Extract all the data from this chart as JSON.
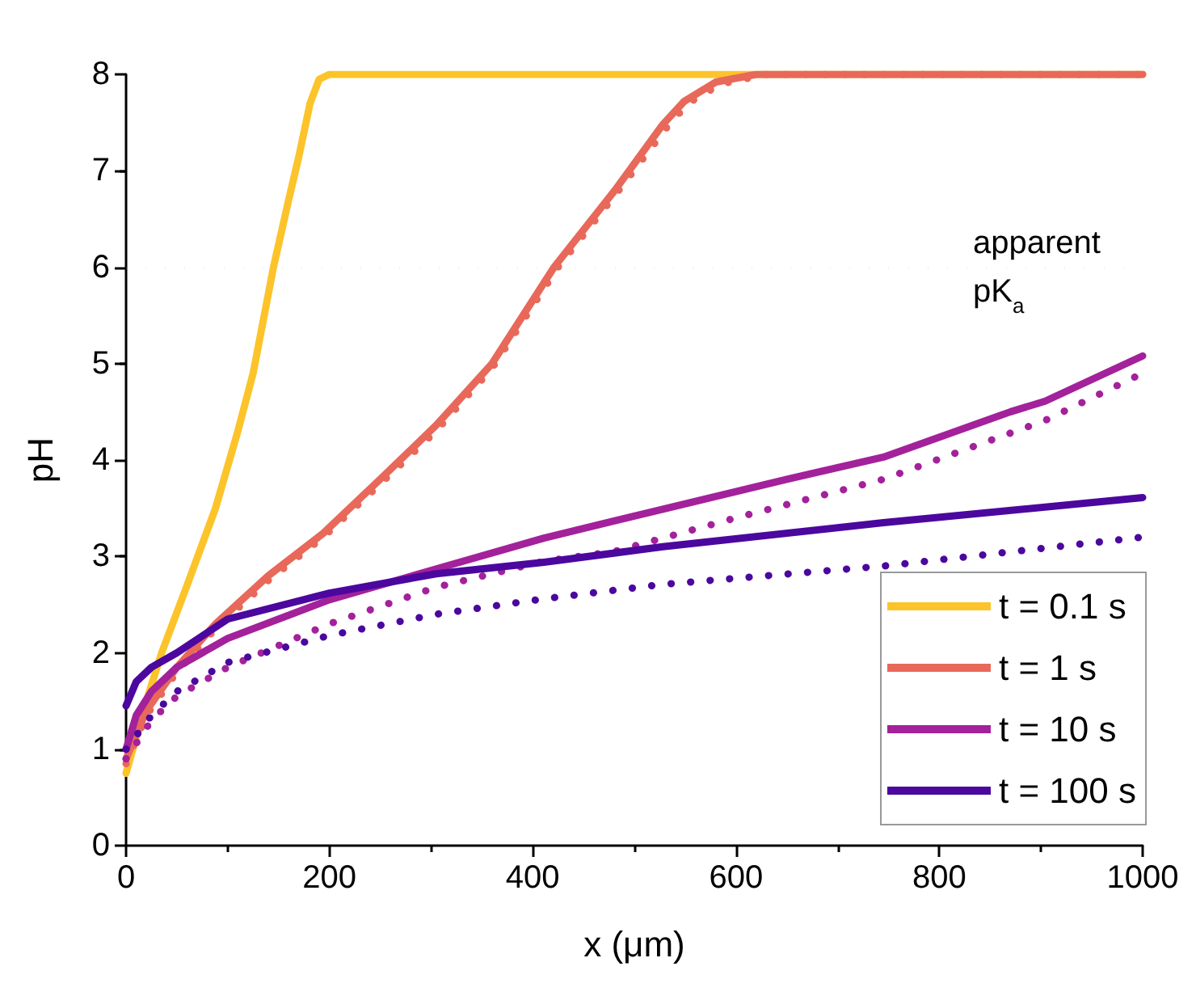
{
  "chart_data": {
    "type": "line",
    "xlabel": "x (μm)",
    "ylabel": "pH",
    "xlim": [
      0,
      1000
    ],
    "xticks": [
      0,
      200,
      400,
      600,
      800,
      1000
    ],
    "ylim": [
      0,
      8
    ],
    "yticks": [
      0,
      1,
      2,
      3,
      4,
      5,
      6,
      7,
      8
    ],
    "legend": "bottom right",
    "marker": "none",
    "line_style": "solid",
    "ref_lines": [
      {
        "axis": "y",
        "value": 6,
        "label": "apparent pK$_{a}$",
        "color": "#aaaaaa",
        "line_style": "dotted"
      }
    ],
    "series": [
      {
        "name": "t = 0.1 s",
        "color": "#fcc42a",
        "x": [
          0,
          20,
          35,
          60,
          88,
          110,
          125,
          145,
          160,
          170,
          181,
          190,
          200,
          1000
        ],
        "values": [
          0.75,
          1.5,
          2.0,
          2.7,
          3.5,
          4.3,
          4.9,
          6.0,
          6.7,
          7.15,
          7.7,
          7.95,
          8,
          8
        ]
      },
      {
        "name": "t = 1 s",
        "color": "#e8685a",
        "x": [
          0,
          20,
          50,
          88,
          140,
          194,
          250,
          305,
          360,
          421,
          481,
          528,
          549,
          580,
          620,
          1000
        ],
        "values": [
          0.9,
          1.4,
          1.85,
          2.3,
          2.8,
          3.24,
          3.8,
          4.36,
          5.0,
          6.0,
          6.8,
          7.48,
          7.72,
          7.92,
          8,
          8
        ]
      },
      {
        "color": "#e8685a",
        "line_style": "dotted",
        "x": [
          0,
          20,
          50,
          88,
          140,
          194,
          250,
          305,
          360,
          425,
          485,
          532,
          553,
          585,
          630,
          1000
        ],
        "values": [
          0.85,
          1.35,
          1.8,
          2.25,
          2.75,
          3.2,
          3.75,
          4.3,
          4.95,
          6.0,
          6.8,
          7.45,
          7.7,
          7.9,
          8,
          8
        ]
      },
      {
        "name": "t = 10 s",
        "color": "#a3219b",
        "x": [
          0,
          10,
          25,
          50,
          100,
          200,
          305,
          411,
          528,
          650,
          745,
          870,
          904,
          1000
        ],
        "values": [
          1.0,
          1.35,
          1.6,
          1.85,
          2.15,
          2.55,
          2.87,
          3.19,
          3.49,
          3.8,
          4.03,
          4.5,
          4.61,
          5.08
        ]
      },
      {
        "color": "#a3219b",
        "line_style": "dotted",
        "x": [
          0,
          25,
          50,
          100,
          200,
          305,
          411,
          480,
          600,
          745,
          904,
          1000
        ],
        "values": [
          0.9,
          1.3,
          1.55,
          1.85,
          2.3,
          2.68,
          2.95,
          3.05,
          3.4,
          3.8,
          4.41,
          4.9
        ]
      },
      {
        "name": "t = 100 s",
        "color": "#4b079e",
        "x": [
          0,
          10,
          25,
          50,
          100,
          200,
          305,
          411,
          528,
          745,
          1000
        ],
        "values": [
          1.45,
          1.7,
          1.85,
          2.0,
          2.35,
          2.62,
          2.82,
          2.94,
          3.1,
          3.35,
          3.61
        ]
      },
      {
        "color": "#4b079e",
        "line_style": "dotted",
        "x": [
          0,
          25,
          50,
          100,
          200,
          305,
          411,
          528,
          745,
          1000
        ],
        "values": [
          1.0,
          1.35,
          1.6,
          1.9,
          2.18,
          2.4,
          2.56,
          2.71,
          2.9,
          3.2
        ]
      }
    ]
  }
}
